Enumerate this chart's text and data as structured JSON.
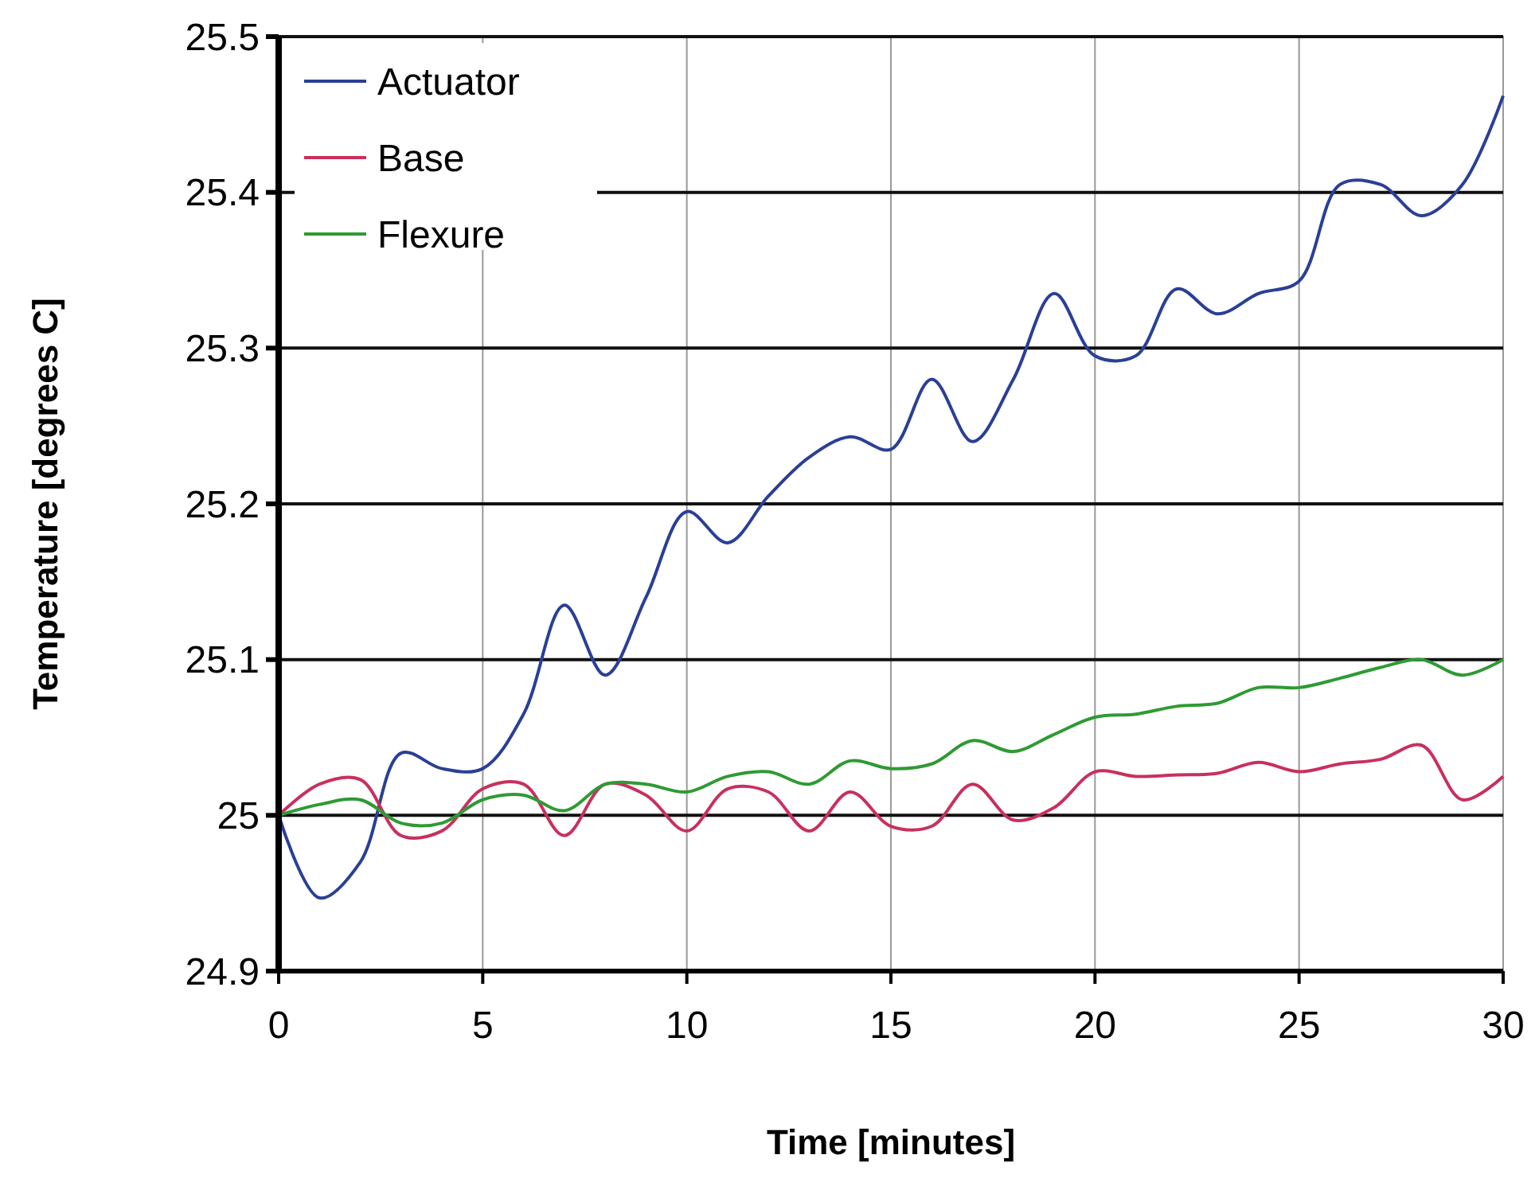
{
  "chart_data": {
    "type": "line",
    "xlabel": "Time [minutes]",
    "ylabel": "Temperature [degrees C]",
    "x": [
      0,
      1,
      2,
      3,
      4,
      5,
      6,
      7,
      8,
      9,
      10,
      11,
      12,
      13,
      14,
      15,
      16,
      17,
      18,
      19,
      20,
      21,
      22,
      23,
      24,
      25,
      26,
      27,
      28,
      29,
      30
    ],
    "xlim": [
      0,
      30
    ],
    "xticks": [
      0,
      5,
      10,
      15,
      20,
      25,
      30
    ],
    "ylim": [
      24.9,
      25.5
    ],
    "yticks": [
      24.9,
      25,
      25.1,
      25.2,
      25.3,
      25.4,
      25.5
    ],
    "grid": true,
    "legend": "top left",
    "marker": "none",
    "line_style": "solid",
    "series": [
      {
        "name": "Actuator",
        "color": "#2a3f96",
        "values": [
          25.0,
          24.947,
          24.97,
          25.04,
          25.03,
          25.03,
          25.065,
          25.135,
          25.09,
          25.14,
          25.195,
          25.175,
          25.205,
          25.23,
          25.243,
          25.235,
          25.28,
          25.24,
          25.28,
          25.335,
          25.295,
          25.295,
          25.338,
          25.322,
          25.335,
          25.343,
          25.405,
          25.405,
          25.385,
          25.405,
          25.462
        ]
      },
      {
        "name": "Base",
        "color": "#c8305e",
        "values": [
          25.0,
          25.02,
          25.023,
          24.987,
          24.99,
          25.017,
          25.02,
          24.987,
          25.02,
          25.013,
          24.99,
          25.017,
          25.015,
          24.99,
          25.015,
          24.993,
          24.993,
          25.02,
          24.997,
          25.005,
          25.028,
          25.025,
          25.026,
          25.027,
          25.034,
          25.028,
          25.033,
          25.036,
          25.045,
          25.01,
          25.025
        ]
      },
      {
        "name": "Flexure",
        "color": "#2f9a34",
        "values": [
          25.0,
          25.007,
          25.01,
          24.995,
          24.995,
          25.01,
          25.013,
          25.003,
          25.02,
          25.02,
          25.015,
          25.025,
          25.028,
          25.02,
          25.035,
          25.03,
          25.033,
          25.048,
          25.041,
          25.052,
          25.063,
          25.065,
          25.07,
          25.072,
          25.082,
          25.082,
          25.088,
          25.095,
          25.1,
          25.09,
          25.1
        ]
      }
    ]
  }
}
